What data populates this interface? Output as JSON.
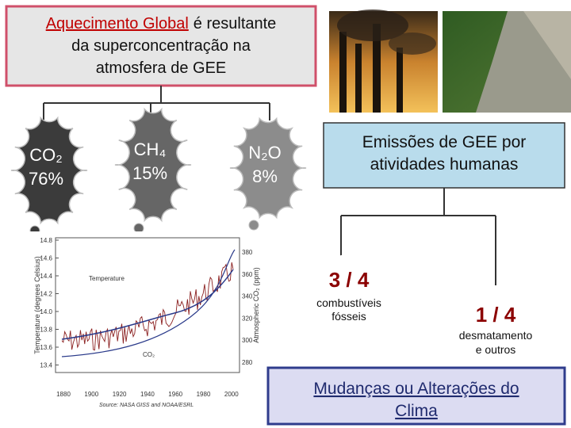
{
  "header": {
    "highlight": "Aquecimento Global",
    "lines": [
      "é resultante",
      "da superconcentração na",
      "atmosfera de GEE"
    ]
  },
  "gases": [
    {
      "formula": "CO₂",
      "share": "76%"
    },
    {
      "formula": "CH₄",
      "share": "15%"
    },
    {
      "formula": "N₂O",
      "share": "8%"
    }
  ],
  "emissions": {
    "lines": [
      "Emissões de GEE por",
      "atividades humanas"
    ]
  },
  "sources": [
    {
      "fraction": "3 / 4",
      "lines": [
        "combustíveis",
        "fósseis"
      ]
    },
    {
      "fraction": "1 / 4",
      "lines": [
        "desmatamento",
        "e outros"
      ]
    }
  ],
  "conclusion": {
    "lines": [
      "Mudanças ou Alterações do",
      "Clima"
    ]
  },
  "figure": {
    "y_label": "Temperature (degrees Celsius)",
    "y2_label": "Atmospheric CO₂ (ppm)",
    "temperature_label": "Temperature",
    "co2_label": "CO₂",
    "source": "Source: NASA GISS and NOAA/ESRL",
    "y_ticks": [
      "14.8",
      "14.6",
      "14.4",
      "14.2",
      "14.0",
      "13.8",
      "13.6",
      "13.4"
    ],
    "y2_ticks": [
      "380",
      "360",
      "340",
      "320",
      "300",
      "280"
    ],
    "x_ticks": [
      "1880",
      "1900",
      "1920",
      "1940",
      "1960",
      "1980",
      "2000"
    ]
  }
}
